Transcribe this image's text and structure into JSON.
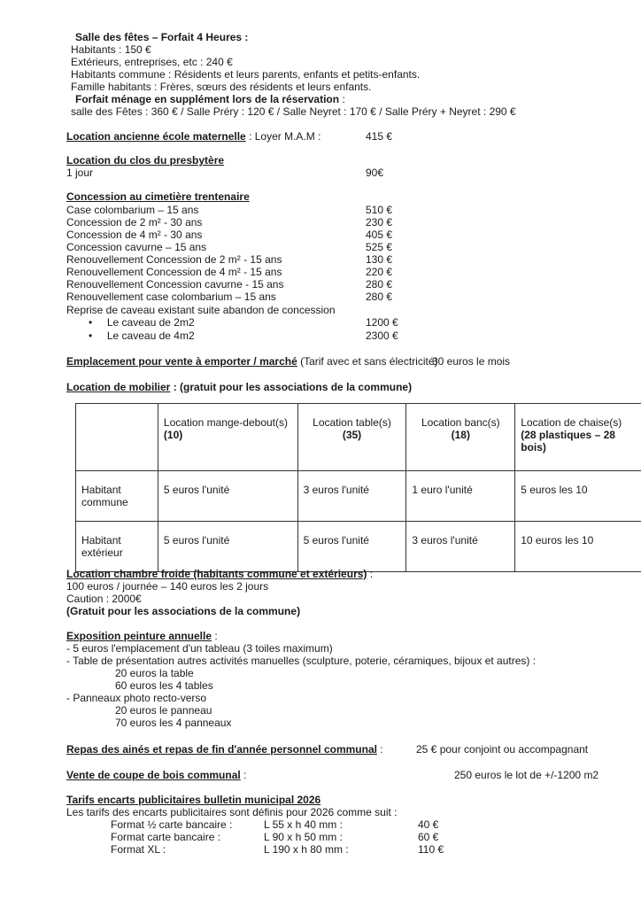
{
  "salle": {
    "title": "Salle des fêtes – Forfait 4 Heures",
    "lines": [
      "Habitants : 150 €",
      "Extérieurs, entreprises, etc : 240 €",
      "Habitants commune : Résidents et leurs parents, enfants et petits-enfants.",
      "Famille habitants : Frères, sœurs des résidents et leurs enfants."
    ],
    "menage_title": "Forfait ménage en supplément lors de la réservation",
    "menage_line": "salle des Fêtes : 360 € / Salle Préry : 120 € / Salle Neyret : 170 € / Salle Préry + Neyret : 290 €"
  },
  "ecole": {
    "title": "Location ancienne école maternelle",
    "label": " : Loyer M.A.M :",
    "value": "415 €"
  },
  "clos": {
    "title": "Location du clos du presbytère",
    "label": "1 jour",
    "value": "90€"
  },
  "concession": {
    "title": "Concession au cimetière trentenaire",
    "rows": [
      {
        "label": "Case colombarium – 15 ans",
        "value": "510 €"
      },
      {
        "label": "Concession de 2 m² - 30 ans",
        "value": "230 €"
      },
      {
        "label": "Concession de 4 m² - 30 ans",
        "value": "405 €"
      },
      {
        "label": "Concession cavurne – 15 ans",
        "value": "525 €"
      },
      {
        "label": "Renouvellement Concession de 2 m² - 15 ans",
        "value": "130 €"
      },
      {
        "label": "Renouvellement Concession de 4 m² - 15 ans",
        "value": "220 €"
      },
      {
        "label": "Renouvellement Concession cavurne - 15 ans",
        "value": "280 €"
      },
      {
        "label": "Renouvellement case colombarium – 15 ans",
        "value": "280 €"
      }
    ],
    "reprise": "Reprise de caveau existant suite abandon de concession",
    "bullets": [
      {
        "label": "Le caveau de 2m2",
        "value": "1200 €"
      },
      {
        "label": "Le caveau de 4m2",
        "value": "2300 €"
      }
    ]
  },
  "emplacement": {
    "title": "Emplacement pour vente à emporter / marché",
    "note": " (Tarif avec et sans électricité)",
    "value": "30 euros le mois"
  },
  "mobilier": {
    "title": "Location de mobilier",
    "note": " : (gratuit pour les associations de la commune)",
    "headers": [
      {
        "label": "Location mange-debout(s)",
        "count": "(10)"
      },
      {
        "label": "Location table(s)",
        "count": "(35)"
      },
      {
        "label": "Location banc(s)",
        "count": "(18)"
      },
      {
        "label": "Location de chaise(s)",
        "count": "(28 plastiques – 28 bois)"
      }
    ],
    "rows": [
      {
        "label": "Habitant commune",
        "cells": [
          "5 euros l'unité",
          "3 euros l'unité",
          "1 euro l'unité",
          "5 euros les 10"
        ]
      },
      {
        "label": "Habitant extérieur",
        "cells": [
          "5 euros l'unité",
          "5 euros l'unité",
          "3 euros l'unité",
          "10 euros les 10"
        ]
      }
    ]
  },
  "froide": {
    "title": "Location chambre froide (habitants commune et extérieurs)",
    "lines": [
      "100 euros / journée – 140 euros les 2 jours",
      "Caution : 2000€"
    ],
    "bold": "(Gratuit pour les associations de la commune)"
  },
  "expo": {
    "title": "Exposition peinture annuelle",
    "l1": "- 5 euros l'emplacement d'un tableau (3 toiles maximum)",
    "l2": "- Table de présentation autres activités manuelles (sculpture, poterie, céramiques, bijoux et autres) :",
    "l2a": "20 euros la table",
    "l2b": "60 euros les 4 tables",
    "l3": "- Panneaux photo recto-verso",
    "l3a": "20 euros le panneau",
    "l3b": "70 euros les 4 panneaux"
  },
  "repas": {
    "title": "Repas des ainés et repas de fin d'année personnel communal",
    "value": "25 € pour conjoint ou accompagnant"
  },
  "bois": {
    "title": "Vente de coupe de bois communal",
    "value": "250 euros le lot de +/-1200 m2"
  },
  "encarts": {
    "title": "Tarifs encarts publicitaires bulletin municipal 2026",
    "intro": "Les tarifs des encarts publicitaires sont définis pour 2026 comme suit :",
    "rows": [
      {
        "format": "Format ½ carte bancaire :",
        "size": "L 55 x h 40 mm :",
        "price": "40 €"
      },
      {
        "format": "Format carte bancaire :",
        "size": "L 90 x h 50 mm :",
        "price": "60 €"
      },
      {
        "format": "Format XL :",
        "size": "L 190 x h 80 mm :",
        "price": "110 €"
      }
    ]
  }
}
